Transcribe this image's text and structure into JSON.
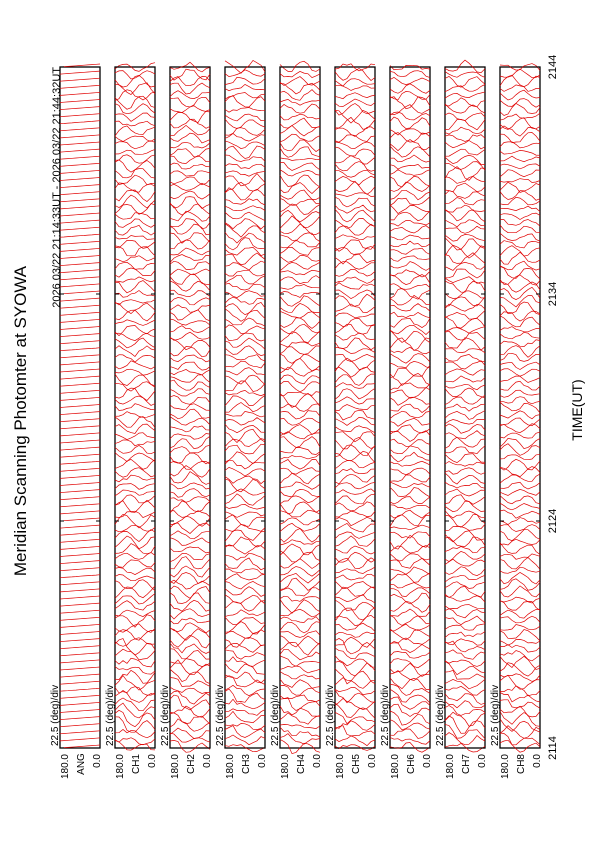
{
  "chart_data": {
    "type": "stacked-scan",
    "title": "Meridian Scanning Photomter at SYOWA",
    "subtitle": "2026 03/22 21:14:33UT - 2026 03/22 21:44:32UT",
    "x_label": "TIME(UT)",
    "xlim": [
      2114,
      2144
    ],
    "xticks": [
      2114,
      2124,
      2134,
      2144
    ],
    "scale_label": "22.5 (deg)/div",
    "range_top": "180.0",
    "range_bottom": "0.0",
    "panels": [
      "ANG",
      "CH1",
      "CH2",
      "CH3",
      "CH4",
      "CH5",
      "CH6",
      "CH7",
      "CH8"
    ],
    "color": "#e00000"
  }
}
